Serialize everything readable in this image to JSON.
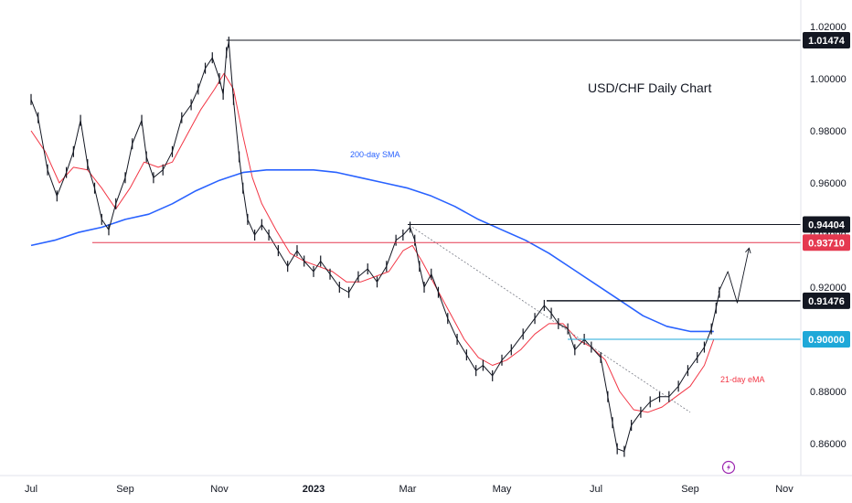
{
  "chart_data": {
    "type": "line",
    "title": "USD/CHF Daily Chart",
    "pair": "USD/CHF",
    "timeframe": "Daily",
    "xlabel": "",
    "ylabel": "",
    "ylim": [
      0.85,
      1.025
    ],
    "y_ticks": [
      "1.02000",
      "1.00000",
      "0.98000",
      "0.96000",
      "0.94000",
      "0.92000",
      "0.90000",
      "0.88000",
      "0.86000"
    ],
    "x_ticks": [
      "Jul",
      "Sep",
      "Nov",
      "2023",
      "Mar",
      "May",
      "Jul",
      "Sep",
      "Nov"
    ],
    "x_tick_months": [
      0,
      2,
      4,
      6,
      8,
      10,
      12,
      14,
      16
    ],
    "x_tick_bold": [
      false,
      false,
      false,
      true,
      false,
      false,
      false,
      false,
      false
    ],
    "levels": [
      {
        "value": 1.01474,
        "label": "1.01474",
        "color": "#131722"
      },
      {
        "value": 0.94404,
        "label": "0.94404",
        "color": "#131722"
      },
      {
        "value": 0.9371,
        "label": "0.93710",
        "color": "#e53950"
      },
      {
        "value": 0.91476,
        "label": "0.91476",
        "color": "#131722"
      },
      {
        "value": 0.9,
        "label": "0.90000",
        "color": "#1fa8d8"
      }
    ],
    "price_path": [
      [
        0.0,
        0.992
      ],
      [
        0.15,
        0.985
      ],
      [
        0.35,
        0.965
      ],
      [
        0.55,
        0.955
      ],
      [
        0.75,
        0.964
      ],
      [
        0.9,
        0.972
      ],
      [
        1.05,
        0.984
      ],
      [
        1.2,
        0.967
      ],
      [
        1.35,
        0.958
      ],
      [
        1.5,
        0.946
      ],
      [
        1.65,
        0.942
      ],
      [
        1.8,
        0.952
      ],
      [
        2.0,
        0.962
      ],
      [
        2.15,
        0.975
      ],
      [
        2.35,
        0.984
      ],
      [
        2.45,
        0.97
      ],
      [
        2.6,
        0.962
      ],
      [
        2.8,
        0.965
      ],
      [
        3.0,
        0.972
      ],
      [
        3.2,
        0.985
      ],
      [
        3.4,
        0.99
      ],
      [
        3.55,
        0.996
      ],
      [
        3.7,
        1.004
      ],
      [
        3.85,
        1.008
      ],
      [
        4.0,
        1.0
      ],
      [
        4.08,
        0.994
      ],
      [
        4.15,
        1.01
      ],
      [
        4.2,
        1.014
      ],
      [
        4.3,
        0.992
      ],
      [
        4.42,
        0.97
      ],
      [
        4.5,
        0.958
      ],
      [
        4.6,
        0.946
      ],
      [
        4.75,
        0.94
      ],
      [
        4.9,
        0.944
      ],
      [
        5.05,
        0.94
      ],
      [
        5.25,
        0.934
      ],
      [
        5.45,
        0.928
      ],
      [
        5.65,
        0.934
      ],
      [
        5.8,
        0.93
      ],
      [
        6.0,
        0.926
      ],
      [
        6.15,
        0.93
      ],
      [
        6.35,
        0.925
      ],
      [
        6.55,
        0.92
      ],
      [
        6.75,
        0.918
      ],
      [
        6.95,
        0.924
      ],
      [
        7.15,
        0.927
      ],
      [
        7.35,
        0.922
      ],
      [
        7.55,
        0.928
      ],
      [
        7.75,
        0.938
      ],
      [
        7.9,
        0.94
      ],
      [
        8.05,
        0.943
      ],
      [
        8.15,
        0.938
      ],
      [
        8.25,
        0.928
      ],
      [
        8.35,
        0.92
      ],
      [
        8.5,
        0.925
      ],
      [
        8.65,
        0.918
      ],
      [
        8.85,
        0.908
      ],
      [
        9.05,
        0.9
      ],
      [
        9.25,
        0.894
      ],
      [
        9.45,
        0.888
      ],
      [
        9.6,
        0.89
      ],
      [
        9.8,
        0.886
      ],
      [
        10.0,
        0.892
      ],
      [
        10.2,
        0.896
      ],
      [
        10.45,
        0.902
      ],
      [
        10.7,
        0.908
      ],
      [
        10.9,
        0.913
      ],
      [
        11.05,
        0.91
      ],
      [
        11.2,
        0.906
      ],
      [
        11.4,
        0.904
      ],
      [
        11.55,
        0.896
      ],
      [
        11.75,
        0.9
      ],
      [
        11.9,
        0.897
      ],
      [
        12.1,
        0.893
      ],
      [
        12.25,
        0.878
      ],
      [
        12.35,
        0.868
      ],
      [
        12.45,
        0.858
      ],
      [
        12.6,
        0.857
      ],
      [
        12.75,
        0.867
      ],
      [
        12.95,
        0.872
      ],
      [
        13.15,
        0.876
      ],
      [
        13.35,
        0.878
      ],
      [
        13.55,
        0.878
      ],
      [
        13.75,
        0.882
      ],
      [
        13.95,
        0.888
      ],
      [
        14.15,
        0.893
      ],
      [
        14.3,
        0.897
      ],
      [
        14.45,
        0.904
      ],
      [
        14.55,
        0.912
      ],
      [
        14.62,
        0.918
      ]
    ],
    "sma200": {
      "label": "200-day SMA",
      "color": "#2962ff",
      "points": [
        [
          0.0,
          0.936
        ],
        [
          0.5,
          0.938
        ],
        [
          1.0,
          0.941
        ],
        [
          1.5,
          0.943
        ],
        [
          2.0,
          0.946
        ],
        [
          2.5,
          0.948
        ],
        [
          3.0,
          0.952
        ],
        [
          3.5,
          0.957
        ],
        [
          4.0,
          0.961
        ],
        [
          4.5,
          0.964
        ],
        [
          5.0,
          0.965
        ],
        [
          5.5,
          0.965
        ],
        [
          6.0,
          0.965
        ],
        [
          6.5,
          0.964
        ],
        [
          7.0,
          0.962
        ],
        [
          7.5,
          0.96
        ],
        [
          8.0,
          0.958
        ],
        [
          8.5,
          0.955
        ],
        [
          9.0,
          0.951
        ],
        [
          9.5,
          0.946
        ],
        [
          10.0,
          0.942
        ],
        [
          10.5,
          0.938
        ],
        [
          11.0,
          0.933
        ],
        [
          11.5,
          0.927
        ],
        [
          12.0,
          0.921
        ],
        [
          12.5,
          0.915
        ],
        [
          13.0,
          0.909
        ],
        [
          13.5,
          0.905
        ],
        [
          14.0,
          0.903
        ],
        [
          14.5,
          0.903
        ]
      ]
    },
    "ema21": {
      "label": "21-day eMA",
      "color": "#f23645",
      "points": [
        [
          0.0,
          0.98
        ],
        [
          0.3,
          0.972
        ],
        [
          0.6,
          0.96
        ],
        [
          0.9,
          0.966
        ],
        [
          1.2,
          0.965
        ],
        [
          1.5,
          0.958
        ],
        [
          1.8,
          0.95
        ],
        [
          2.1,
          0.958
        ],
        [
          2.4,
          0.968
        ],
        [
          2.7,
          0.966
        ],
        [
          3.0,
          0.968
        ],
        [
          3.3,
          0.978
        ],
        [
          3.6,
          0.988
        ],
        [
          3.9,
          0.996
        ],
        [
          4.1,
          1.002
        ],
        [
          4.3,
          0.996
        ],
        [
          4.5,
          0.978
        ],
        [
          4.7,
          0.962
        ],
        [
          4.9,
          0.952
        ],
        [
          5.2,
          0.942
        ],
        [
          5.5,
          0.933
        ],
        [
          5.8,
          0.93
        ],
        [
          6.1,
          0.928
        ],
        [
          6.4,
          0.926
        ],
        [
          6.7,
          0.922
        ],
        [
          7.0,
          0.922
        ],
        [
          7.3,
          0.924
        ],
        [
          7.6,
          0.926
        ],
        [
          7.9,
          0.934
        ],
        [
          8.1,
          0.936
        ],
        [
          8.3,
          0.93
        ],
        [
          8.6,
          0.92
        ],
        [
          8.9,
          0.91
        ],
        [
          9.2,
          0.9
        ],
        [
          9.5,
          0.893
        ],
        [
          9.8,
          0.89
        ],
        [
          10.1,
          0.892
        ],
        [
          10.4,
          0.896
        ],
        [
          10.7,
          0.902
        ],
        [
          11.0,
          0.906
        ],
        [
          11.3,
          0.906
        ],
        [
          11.6,
          0.9
        ],
        [
          11.9,
          0.897
        ],
        [
          12.2,
          0.892
        ],
        [
          12.5,
          0.88
        ],
        [
          12.8,
          0.873
        ],
        [
          13.1,
          0.872
        ],
        [
          13.4,
          0.874
        ],
        [
          13.7,
          0.878
        ],
        [
          14.0,
          0.882
        ],
        [
          14.3,
          0.89
        ],
        [
          14.5,
          0.9
        ]
      ]
    },
    "trendline": {
      "from": [
        8.1,
        0.943
      ],
      "to": [
        14.0,
        0.872
      ]
    },
    "projection": [
      [
        14.6,
        0.918
      ],
      [
        14.8,
        0.926
      ],
      [
        15.0,
        0.914
      ],
      [
        15.25,
        0.935
      ]
    ],
    "grid": false,
    "legend": "none"
  }
}
